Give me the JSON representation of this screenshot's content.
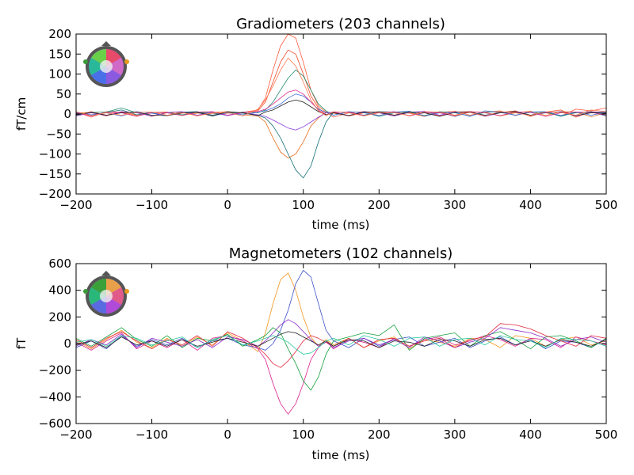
{
  "chart_data": [
    {
      "type": "line",
      "title": "Gradiometers (203 channels)",
      "xlabel": "time (ms)",
      "ylabel": "fT/cm",
      "xlim": [
        -200,
        500
      ],
      "ylim": [
        -200,
        200
      ],
      "xticks": [
        -200,
        -100,
        0,
        100,
        200,
        300,
        400,
        500
      ],
      "yticks": [
        -200,
        -150,
        -100,
        -50,
        0,
        50,
        100,
        150,
        200
      ],
      "xtick_labels": [
        "−200",
        "−100",
        "0",
        "100",
        "200",
        "300",
        "400",
        "500"
      ],
      "ytick_labels": [
        "−200",
        "−150",
        "−100",
        "−50",
        "0",
        "50",
        "100",
        "150",
        "200"
      ],
      "grid": false,
      "inset": "sensor-layout-head-top-left",
      "x": [
        -200,
        -180,
        -160,
        -140,
        -120,
        -100,
        -80,
        -60,
        -40,
        -20,
        0,
        20,
        40,
        50,
        60,
        70,
        80,
        90,
        100,
        110,
        120,
        130,
        140,
        160,
        180,
        200,
        220,
        240,
        260,
        280,
        300,
        320,
        340,
        360,
        380,
        400,
        420,
        440,
        460,
        480,
        500
      ],
      "series": [
        {
          "color": "#ff5a3c",
          "values": [
            5,
            -8,
            6,
            4,
            -5,
            3,
            -4,
            2,
            5,
            -3,
            2,
            4,
            10,
            40,
            110,
            170,
            200,
            190,
            130,
            60,
            20,
            5,
            -8,
            3,
            6,
            -4,
            5,
            2,
            -6,
            4,
            7,
            -3,
            5,
            8,
            -4,
            6,
            3,
            -5,
            12,
            8,
            15
          ]
        },
        {
          "color": "#f04a2a",
          "values": [
            -4,
            6,
            -3,
            5,
            4,
            -6,
            3,
            5,
            -4,
            2,
            -3,
            3,
            8,
            30,
            80,
            130,
            160,
            150,
            100,
            45,
            15,
            -2,
            4,
            -5,
            3,
            6,
            -3,
            5,
            3,
            -4,
            5,
            6,
            -5,
            4,
            8,
            -6,
            5,
            10,
            -8,
            6,
            4
          ]
        },
        {
          "color": "#e8701e",
          "values": [
            3,
            4,
            -5,
            6,
            -3,
            4,
            5,
            -3,
            2,
            4,
            6,
            -2,
            -5,
            -20,
            -60,
            -95,
            -110,
            -100,
            -70,
            -30,
            -10,
            5,
            2,
            -4,
            6,
            3,
            -5,
            4,
            -6,
            5,
            -3,
            6,
            4,
            -5,
            3,
            7,
            -4,
            6,
            5,
            -7,
            3
          ]
        },
        {
          "color": "#146e78",
          "values": [
            2,
            -3,
            4,
            10,
            -2,
            3,
            -4,
            5,
            6,
            -3,
            4,
            2,
            -3,
            -10,
            -30,
            -60,
            -100,
            -140,
            -160,
            -130,
            -70,
            -20,
            5,
            4,
            -3,
            6,
            5,
            -4,
            3,
            4,
            -6,
            5,
            -3,
            4,
            6,
            -3,
            5,
            -4,
            3,
            6,
            -5
          ]
        },
        {
          "color": "#1e8c6e",
          "values": [
            -3,
            4,
            5,
            15,
            3,
            -5,
            4,
            -2,
            5,
            3,
            -4,
            5,
            3,
            10,
            30,
            60,
            90,
            110,
            95,
            60,
            25,
            8,
            -3,
            5,
            4,
            -6,
            3,
            5,
            -4,
            6,
            3,
            -5,
            4,
            6,
            -3,
            4,
            5,
            -6,
            4,
            3,
            5
          ]
        },
        {
          "color": "#3c6edc",
          "values": [
            4,
            -2,
            3,
            -5,
            6,
            2,
            -4,
            3,
            4,
            -5,
            3,
            -2,
            4,
            8,
            15,
            25,
            40,
            50,
            45,
            30,
            12,
            4,
            -3,
            6,
            3,
            -4,
            5,
            7,
            -5,
            3,
            4,
            -6,
            8,
            4,
            -3,
            5,
            6,
            -4,
            5,
            -3,
            4
          ]
        },
        {
          "color": "#8c3cdc",
          "values": [
            -5,
            3,
            -4,
            6,
            3,
            -5,
            4,
            6,
            -3,
            5,
            -4,
            3,
            -2,
            -6,
            -15,
            -25,
            -35,
            -40,
            -32,
            -20,
            -8,
            3,
            5,
            -4,
            6,
            3,
            -5,
            4,
            7,
            -3,
            5,
            4,
            -6,
            3,
            5,
            -4,
            3,
            6,
            -5,
            4,
            6
          ]
        },
        {
          "color": "#dc2a8c",
          "values": [
            3,
            -5,
            4,
            3,
            -6,
            4,
            3,
            -4,
            5,
            6,
            -3,
            4,
            6,
            12,
            25,
            40,
            55,
            60,
            50,
            30,
            10,
            -3,
            4,
            5,
            -4,
            3,
            6,
            -5,
            4,
            3,
            -5,
            6,
            3,
            -4,
            5,
            4,
            -6,
            3,
            5,
            4,
            -3
          ]
        },
        {
          "color": "#222222",
          "values": [
            -2,
            4,
            -3,
            3,
            5,
            -3,
            -4,
            3,
            4,
            -5,
            6,
            3,
            -4,
            5,
            10,
            20,
            30,
            35,
            30,
            18,
            6,
            -2,
            3,
            -4,
            5,
            4,
            -3,
            5,
            3,
            -6,
            4,
            5,
            -4,
            3,
            6,
            -3,
            4,
            5,
            -4,
            3,
            2
          ]
        },
        {
          "color": "#ff7a50",
          "values": [
            6,
            -4,
            3,
            -3,
            4,
            5,
            -3,
            4,
            -5,
            3,
            4,
            -5,
            12,
            35,
            70,
            110,
            140,
            120,
            80,
            35,
            8,
            -4,
            6,
            3,
            -5,
            4,
            3,
            -4,
            6,
            5,
            -3,
            4,
            -5,
            6,
            3,
            -4,
            5,
            4,
            -3,
            10,
            6
          ]
        }
      ]
    },
    {
      "type": "line",
      "title": "Magnetometers (102 channels)",
      "xlabel": "time (ms)",
      "ylabel": "fT",
      "xlim": [
        -200,
        500
      ],
      "ylim": [
        -600,
        600
      ],
      "xticks": [
        -200,
        -100,
        0,
        100,
        200,
        300,
        400,
        500
      ],
      "yticks": [
        -600,
        -400,
        -200,
        0,
        200,
        400,
        600
      ],
      "xtick_labels": [
        "−200",
        "−100",
        "0",
        "100",
        "200",
        "300",
        "400",
        "500"
      ],
      "ytick_labels": [
        "−600",
        "−400",
        "−200",
        "0",
        "200",
        "400",
        "600"
      ],
      "grid": false,
      "inset": "sensor-layout-head-top-left",
      "x": [
        -200,
        -180,
        -160,
        -140,
        -120,
        -100,
        -80,
        -60,
        -40,
        -20,
        0,
        20,
        40,
        50,
        60,
        70,
        80,
        90,
        100,
        110,
        120,
        130,
        140,
        160,
        180,
        200,
        220,
        240,
        260,
        280,
        300,
        320,
        340,
        360,
        380,
        400,
        420,
        440,
        460,
        480,
        500
      ],
      "series": [
        {
          "color": "#f0961e",
          "values": [
            20,
            -40,
            30,
            100,
            10,
            -30,
            40,
            -20,
            50,
            -10,
            80,
            20,
            -60,
            80,
            300,
            480,
            530,
            400,
            200,
            50,
            -20,
            30,
            -10,
            40,
            -30,
            20,
            50,
            -40,
            30,
            10,
            -20,
            40,
            30,
            -30,
            60,
            40,
            -20,
            30,
            50,
            -10,
            20
          ]
        },
        {
          "color": "#3c50c8",
          "values": [
            -30,
            20,
            -40,
            60,
            -20,
            30,
            -10,
            40,
            -30,
            20,
            40,
            -10,
            -30,
            -50,
            0,
            100,
            250,
            450,
            550,
            500,
            300,
            100,
            20,
            -30,
            40,
            -20,
            30,
            50,
            -20,
            10,
            40,
            -30,
            20,
            50,
            -10,
            30,
            -40,
            20,
            10,
            -30,
            40
          ]
        },
        {
          "color": "#dc1e8c",
          "values": [
            10,
            -50,
            20,
            80,
            -40,
            20,
            -30,
            30,
            -50,
            40,
            60,
            20,
            -40,
            -120,
            -300,
            -450,
            -530,
            -450,
            -300,
            -120,
            -30,
            20,
            -40,
            30,
            10,
            -30,
            40,
            -20,
            30,
            50,
            -10,
            20,
            60,
            30,
            -20,
            40,
            30,
            -30,
            50,
            20,
            -10
          ]
        },
        {
          "color": "#14a03c",
          "values": [
            40,
            -20,
            50,
            120,
            30,
            -20,
            60,
            -30,
            40,
            20,
            70,
            -20,
            30,
            60,
            120,
            80,
            -40,
            -150,
            -280,
            -350,
            -250,
            -80,
            20,
            50,
            80,
            60,
            140,
            -50,
            40,
            60,
            80,
            -20,
            60,
            90,
            30,
            -40,
            50,
            60,
            20,
            -30,
            40
          ]
        },
        {
          "color": "#8c28c8",
          "values": [
            -20,
            30,
            -10,
            70,
            -30,
            40,
            10,
            -20,
            30,
            -30,
            50,
            30,
            -20,
            20,
            80,
            140,
            180,
            150,
            90,
            30,
            -20,
            10,
            -30,
            20,
            40,
            -10,
            30,
            -30,
            50,
            20,
            -30,
            10,
            40,
            120,
            100,
            80,
            40,
            -20,
            30,
            50,
            10
          ]
        },
        {
          "color": "#e0283c",
          "values": [
            30,
            -30,
            40,
            90,
            20,
            -40,
            30,
            -10,
            60,
            -20,
            90,
            40,
            -30,
            -80,
            -150,
            -180,
            -130,
            -60,
            20,
            60,
            40,
            10,
            -20,
            40,
            -30,
            30,
            40,
            -20,
            20,
            40,
            -30,
            30,
            50,
            150,
            140,
            110,
            60,
            20,
            -20,
            60,
            40
          ]
        },
        {
          "color": "#222222",
          "values": [
            -10,
            20,
            -30,
            50,
            -10,
            20,
            -20,
            30,
            -20,
            10,
            40,
            10,
            -20,
            10,
            40,
            70,
            90,
            80,
            50,
            20,
            -10,
            20,
            -20,
            30,
            20,
            -30,
            20,
            10,
            -20,
            30,
            20,
            -20,
            30,
            40,
            -10,
            20,
            -20,
            30,
            10,
            -20,
            30
          ]
        },
        {
          "color": "#28c8a0",
          "values": [
            10,
            30,
            -20,
            60,
            40,
            -10,
            20,
            50,
            -30,
            30,
            60,
            -10,
            20,
            40,
            60,
            40,
            10,
            -40,
            -80,
            -70,
            -30,
            20,
            40,
            -10,
            60,
            30,
            -20,
            40,
            50,
            -20,
            30,
            40,
            -10,
            60,
            30,
            20,
            -30,
            40,
            30,
            20,
            -20
          ]
        }
      ]
    }
  ]
}
